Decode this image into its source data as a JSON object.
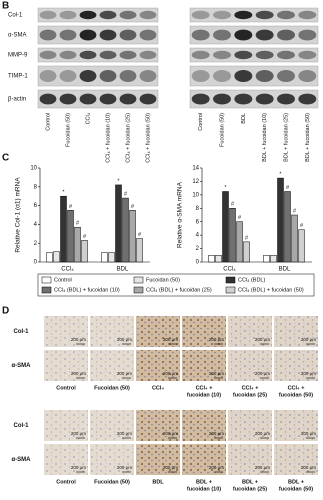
{
  "panels": {
    "b": "B",
    "c": "C",
    "d": "D"
  },
  "panel_b": {
    "rows": [
      "Col-1",
      "α-SMA",
      "MMP-9",
      "TIMP-1",
      "β-actin"
    ],
    "blots": [
      {
        "lanes": [
          "Control",
          "Fucoidan (50)",
          "CCl₄",
          "CCl₄ + fucoidan (10)",
          "CCl₄ + fucoidan (25)",
          "CCl₄ + fucoidan (50)"
        ]
      },
      {
        "lanes": [
          "Control",
          "Fucoidan (50)",
          "BDL",
          "BDL + fucoidan (10)",
          "BDL + fucoidan (25)",
          "BDL + fucoidan (50)"
        ]
      }
    ]
  },
  "chart_data": [
    {
      "type": "bar",
      "y_label": "Relative Col-1 (α1) mRNA",
      "categories": [
        "CCl₄",
        "BDL"
      ],
      "ylim": [
        0,
        10
      ],
      "yticks": [
        0,
        2,
        4,
        6,
        8,
        10
      ],
      "series": [
        {
          "name": "Control",
          "color": "#ffffff",
          "values": [
            1,
            1
          ]
        },
        {
          "name": "Fucoidan (50)",
          "color": "#e6e6e6",
          "values": [
            1.1,
            1
          ]
        },
        {
          "name": "CCl₄ (BDL)",
          "color": "#333333",
          "values": [
            7,
            8.2
          ],
          "significance": [
            "*",
            "*"
          ]
        },
        {
          "name": "CCl₄ (BDL) + fucoidan (10)",
          "color": "#707070",
          "values": [
            5.5,
            6.8
          ],
          "significance": [
            "#",
            "#"
          ]
        },
        {
          "name": "CCl₄ (BDL) + fucoidan (25)",
          "color": "#a8a8a8",
          "values": [
            3.7,
            5.5
          ],
          "significance": [
            "#",
            "#"
          ]
        },
        {
          "name": "CCl₄ (BDL) + fucoidan (50)",
          "color": "#d0d0d0",
          "values": [
            2.3,
            2.5
          ],
          "significance": [
            "#",
            "#"
          ]
        }
      ]
    },
    {
      "type": "bar",
      "y_label": "Relative α-SMA mRNA",
      "categories": [
        "CCl₄",
        "BDL"
      ],
      "ylim": [
        0,
        14
      ],
      "yticks": [
        0,
        2,
        4,
        6,
        8,
        10,
        12,
        14
      ],
      "series": [
        {
          "color": "#ffffff",
          "values": [
            1,
            1
          ]
        },
        {
          "color": "#e6e6e6",
          "values": [
            1,
            1
          ]
        },
        {
          "color": "#333333",
          "values": [
            10.5,
            12.5
          ],
          "significance": [
            "*",
            "*"
          ]
        },
        {
          "color": "#707070",
          "values": [
            8,
            10.5
          ],
          "significance": [
            "#",
            "#"
          ]
        },
        {
          "color": "#a8a8a8",
          "values": [
            6,
            7
          ],
          "significance": [
            "#",
            "#"
          ]
        },
        {
          "color": "#d0d0d0",
          "values": [
            3,
            4.8
          ],
          "significance": [
            "#",
            "#"
          ]
        }
      ]
    }
  ],
  "panel_d": {
    "rows": [
      "Col-1",
      "α-SMA"
    ],
    "scale_bar": "200 μm",
    "blocks": [
      {
        "columns": [
          [
            "Control"
          ],
          [
            "Fucoidan (50)"
          ],
          [
            "CCl₄"
          ],
          [
            "CCl₄ +",
            "fucoidan (10)"
          ],
          [
            "CCl₄ +",
            "fucoidan (25)"
          ],
          [
            "CCl₄ +",
            "fucoidan (50)"
          ]
        ]
      },
      {
        "columns": [
          [
            "Control"
          ],
          [
            "Fucoidan (50)"
          ],
          [
            "BDL"
          ],
          [
            "BDL +",
            "fucoidan (10)"
          ],
          [
            "BDL +",
            "fucoidan (25)"
          ],
          [
            "BDL +",
            "fucoidan (50)"
          ]
        ]
      }
    ]
  }
}
